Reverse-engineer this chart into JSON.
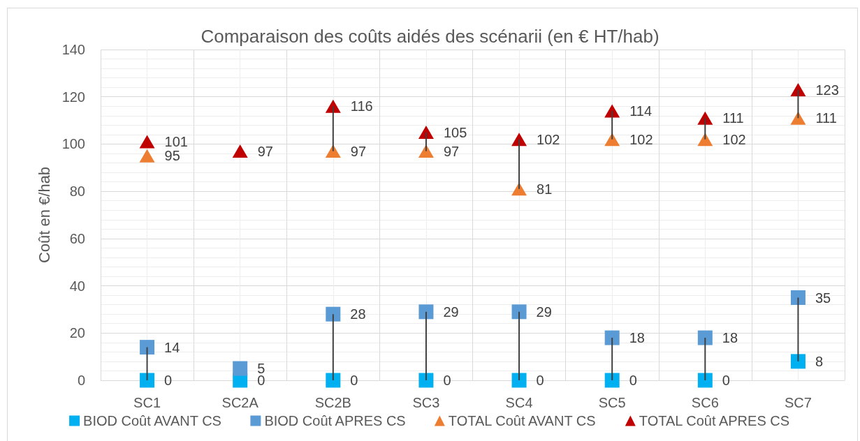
{
  "chart_data": {
    "type": "scatter",
    "title": "Comparaison des coûts aidés des scénarii (en € HT/hab)",
    "ylabel": "Coût en €/hab",
    "categories": [
      "SC1",
      "SC2A",
      "SC2B",
      "SC3",
      "SC4",
      "SC5",
      "SC6",
      "SC7"
    ],
    "series": [
      {
        "name": "BIOD Coût AVANT CS",
        "color": "#00b0f0",
        "marker": "square",
        "values": [
          0,
          0,
          0,
          0,
          0,
          0,
          0,
          8
        ],
        "value_labels": [
          "0",
          "0",
          "0",
          "0",
          "0",
          "0",
          "0",
          "8"
        ]
      },
      {
        "name": "BIOD Coût APRES CS",
        "color": "#5b9bd5",
        "marker": "square",
        "values": [
          14,
          5,
          28,
          29,
          29,
          18,
          18,
          35
        ],
        "value_labels": [
          "14",
          "5",
          "28",
          "29",
          "29",
          "18",
          "18",
          "35"
        ]
      },
      {
        "name": "TOTAL Coût AVANT CS",
        "color": "#ed7d31",
        "marker": "triangle",
        "values": [
          95,
          null,
          97,
          97,
          81,
          102,
          102,
          111
        ],
        "value_labels": [
          "95",
          null,
          "97",
          "97",
          "81",
          "102",
          "102",
          "111"
        ]
      },
      {
        "name": "TOTAL Coût APRES CS",
        "color": "#c00000",
        "marker": "triangle",
        "values": [
          101,
          97,
          116,
          105,
          102,
          114,
          111,
          123
        ],
        "value_labels": [
          "101",
          "97",
          "116",
          "105",
          "102",
          "114",
          "111",
          "123"
        ]
      },
      {
        "type": "bar",
        "color": "#404040",
        "base": [
          0,
          null,
          0,
          0,
          0,
          0,
          0,
          8
        ],
        "values": [
          14,
          null,
          28,
          29,
          29,
          18,
          18,
          27
        ]
      },
      {
        "type": "bar",
        "color": "#404040",
        "base": [
          null,
          null,
          97,
          97,
          81,
          102,
          102,
          111
        ],
        "values": [
          null,
          null,
          19,
          8,
          21,
          12,
          9,
          12
        ]
      }
    ],
    "ylim": [
      0,
      140
    ],
    "yticks": [
      0,
      20,
      40,
      60,
      80,
      100,
      120,
      140
    ],
    "grid": true,
    "legend": "bottom"
  }
}
